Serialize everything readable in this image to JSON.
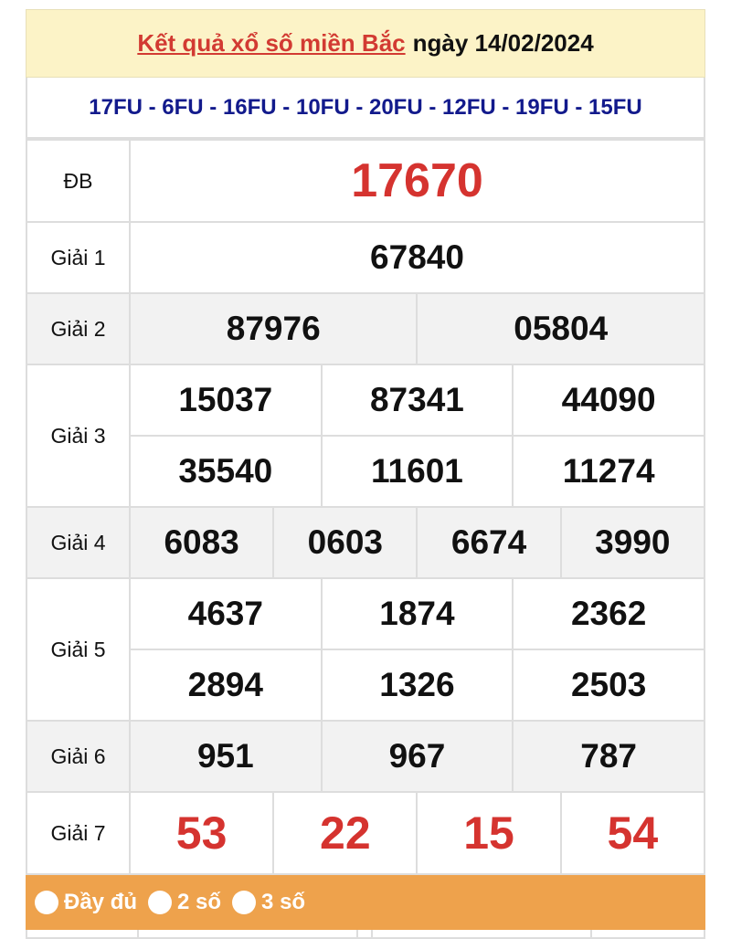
{
  "header": {
    "title_link": "Kết quả xổ số miền Bắc",
    "date_text": "ngày 14/02/2024"
  },
  "codes": "17FU - 6FU - 16FU - 10FU - 20FU - 12FU - 19FU - 15FU",
  "prizes": [
    {
      "label": "ĐB",
      "numbers": [
        "17670"
      ]
    },
    {
      "label": "Giải 1",
      "numbers": [
        "67840"
      ]
    },
    {
      "label": "Giải 2",
      "numbers": [
        "87976",
        "05804"
      ]
    },
    {
      "label": "Giải 3",
      "numbers": [
        "15037",
        "87341",
        "44090",
        "35540",
        "11601",
        "11274"
      ]
    },
    {
      "label": "Giải 4",
      "numbers": [
        "6083",
        "0603",
        "6674",
        "3990"
      ]
    },
    {
      "label": "Giải 5",
      "numbers": [
        "4637",
        "1874",
        "2362",
        "2894",
        "1326",
        "2503"
      ]
    },
    {
      "label": "Giải 6",
      "numbers": [
        "951",
        "967",
        "787"
      ]
    },
    {
      "label": "Giải 7",
      "numbers": [
        "53",
        "22",
        "15",
        "54"
      ]
    }
  ],
  "options": [
    {
      "label": "Đầy đủ"
    },
    {
      "label": "2 số"
    },
    {
      "label": "3 số"
    }
  ],
  "colors": {
    "accent_red": "#d5332f",
    "code_blue": "#121a8c",
    "header_bg": "#fcf3c7",
    "options_bg": "#eea24c"
  }
}
